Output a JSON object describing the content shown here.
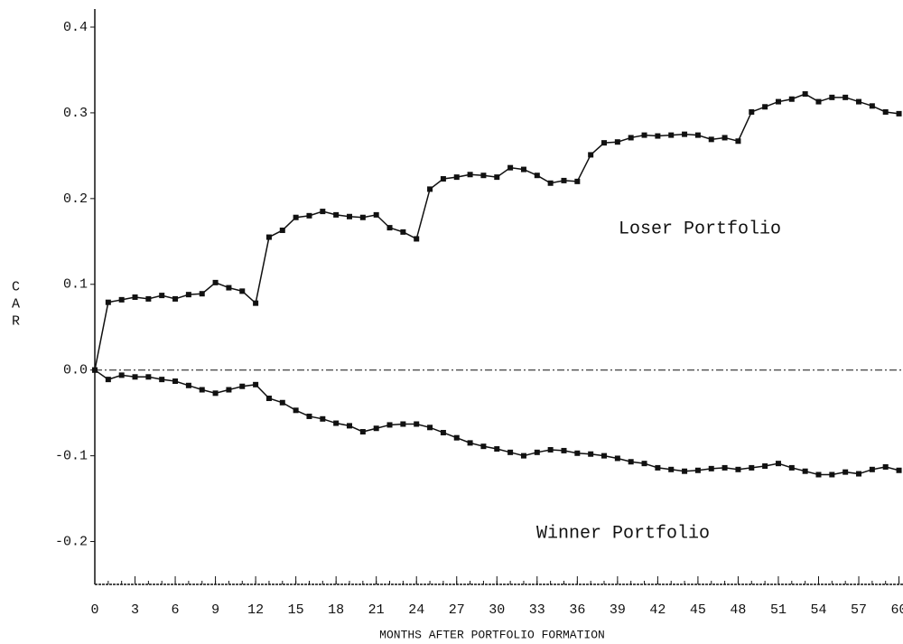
{
  "chart_data": {
    "type": "line",
    "ylabel": "CAR",
    "xlabel": "MONTHS AFTER PORTFOLIO FORMATION",
    "annotations": [
      "Loser Portfolio",
      "Winner Portfolio"
    ],
    "x": [
      0,
      1,
      2,
      3,
      4,
      5,
      6,
      7,
      8,
      9,
      10,
      11,
      12,
      13,
      14,
      15,
      16,
      17,
      18,
      19,
      20,
      21,
      22,
      23,
      24,
      25,
      26,
      27,
      28,
      29,
      30,
      31,
      32,
      33,
      34,
      35,
      36,
      37,
      38,
      39,
      40,
      41,
      42,
      43,
      44,
      45,
      46,
      47,
      48,
      49,
      50,
      51,
      52,
      53,
      54,
      55,
      56,
      57,
      58,
      59,
      60
    ],
    "series": [
      {
        "name": "Loser Portfolio",
        "color": "#111111",
        "values": [
          0,
          0.079,
          0.082,
          0.085,
          0.083,
          0.087,
          0.083,
          0.088,
          0.089,
          0.102,
          0.096,
          0.092,
          0.078,
          0.155,
          0.163,
          0.178,
          0.18,
          0.185,
          0.181,
          0.179,
          0.178,
          0.181,
          0.166,
          0.161,
          0.153,
          0.211,
          0.223,
          0.225,
          0.228,
          0.227,
          0.225,
          0.236,
          0.234,
          0.227,
          0.218,
          0.221,
          0.22,
          0.251,
          0.265,
          0.266,
          0.271,
          0.274,
          0.273,
          0.274,
          0.275,
          0.274,
          0.269,
          0.271,
          0.267,
          0.301,
          0.307,
          0.313,
          0.316,
          0.322,
          0.313,
          0.318,
          0.318,
          0.313,
          0.308,
          0.301,
          0.299
        ]
      },
      {
        "name": "Winner Portfolio",
        "color": "#111111",
        "values": [
          0,
          -0.011,
          -0.006,
          -0.008,
          -0.008,
          -0.011,
          -0.013,
          -0.018,
          -0.023,
          -0.027,
          -0.023,
          -0.019,
          -0.017,
          -0.033,
          -0.038,
          -0.047,
          -0.054,
          -0.057,
          -0.062,
          -0.065,
          -0.072,
          -0.068,
          -0.064,
          -0.063,
          -0.063,
          -0.067,
          -0.073,
          -0.079,
          -0.085,
          -0.089,
          -0.092,
          -0.096,
          -0.1,
          -0.096,
          -0.093,
          -0.094,
          -0.097,
          -0.098,
          -0.1,
          -0.103,
          -0.107,
          -0.109,
          -0.114,
          -0.116,
          -0.118,
          -0.117,
          -0.115,
          -0.114,
          -0.116,
          -0.114,
          -0.112,
          -0.109,
          -0.114,
          -0.118,
          -0.122,
          -0.122,
          -0.119,
          -0.121,
          -0.116,
          -0.113,
          -0.117
        ]
      }
    ],
    "xlim": [
      0,
      60.3
    ],
    "xticks": [
      0,
      3,
      6,
      9,
      12,
      15,
      18,
      21,
      24,
      27,
      30,
      33,
      36,
      39,
      42,
      45,
      48,
      51,
      54,
      57,
      60
    ],
    "ylim": [
      -0.25,
      0.4
    ],
    "yticks": [
      0.4,
      0.3,
      0.2,
      0.1,
      {
        "value": 0,
        "label": "0.0"
      },
      -0.1,
      -0.2
    ],
    "grid": false
  }
}
